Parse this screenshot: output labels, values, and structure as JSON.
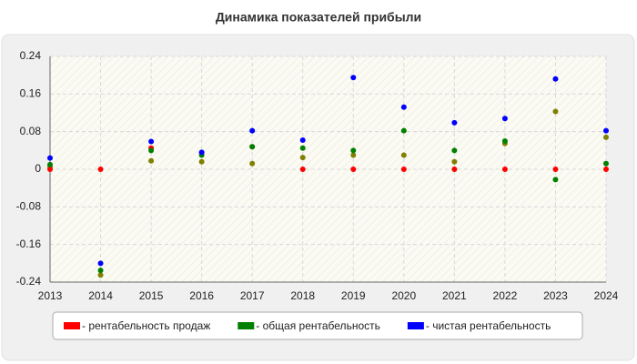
{
  "chart_data": {
    "type": "line",
    "title": "Динамика показателей прибыли",
    "x": [
      2013,
      2014,
      2015,
      2016,
      2017,
      2018,
      2019,
      2020,
      2021,
      2022,
      2023,
      2024
    ],
    "xlim": [
      2013,
      2024
    ],
    "xticks": [
      2013,
      2014,
      2015,
      2016,
      2017,
      2018,
      2019,
      2020,
      2021,
      2022,
      2023,
      2024
    ],
    "ylim": [
      -0.24,
      0.24
    ],
    "yticks": [
      -0.24,
      -0.16,
      -0.08,
      0,
      0.08,
      0.16,
      0.24
    ],
    "grid": true,
    "legend": "bottom",
    "series": [
      {
        "color": "#808000",
        "values": [
          0.005,
          -0.225,
          0.018,
          0.016,
          0.012,
          0.025,
          0.03,
          0.03,
          0.016,
          0.055,
          0.123,
          0.068
        ]
      },
      {
        "name": "- рентабельность продаж",
        "color": "#ff0000",
        "values": [
          0,
          0,
          0.045,
          0.035,
          0.048,
          0,
          0,
          0,
          0,
          0,
          0,
          0
        ]
      },
      {
        "name": "- общая рентабельность",
        "color": "#008000",
        "values": [
          0.01,
          -0.215,
          0.04,
          0.03,
          0.048,
          0.045,
          0.04,
          0.082,
          0.04,
          0.06,
          -0.022,
          0.012
        ]
      },
      {
        "name": "- чистая рентабельность",
        "color": "#0000ff",
        "values": [
          0.024,
          -0.2,
          0.059,
          0.036,
          0.082,
          0.062,
          0.195,
          0.132,
          0.099,
          0.108,
          0.192,
          0.082
        ]
      }
    ]
  }
}
